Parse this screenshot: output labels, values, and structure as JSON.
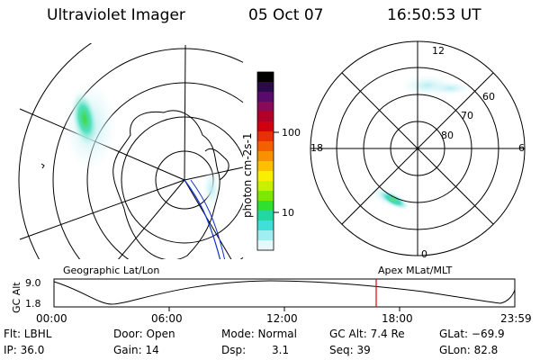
{
  "header": {
    "instrument": "Ultraviolet Imager",
    "date": "05 Oct 07",
    "time": "16:50:53 UT"
  },
  "colorbar": {
    "label": "photon cm-2s-1",
    "ticks": [
      "100",
      "10"
    ],
    "colors": [
      "#000000",
      "#2a0a4a",
      "#5a0a6a",
      "#8a0a5a",
      "#b0002a",
      "#d00010",
      "#e83000",
      "#f46000",
      "#f89000",
      "#fcc000",
      "#f8f000",
      "#c8f000",
      "#80e800",
      "#30e030",
      "#20d8a0",
      "#40e0d8",
      "#a0eef0",
      "#e8f8fa"
    ]
  },
  "left_map": {
    "label": "Geographic Lat/Lon"
  },
  "right_map": {
    "label": "Apex MLat/MLT",
    "lat_labels": [
      "60",
      "70",
      "80"
    ],
    "mlt_labels": [
      "12",
      "18",
      "6",
      "0"
    ]
  },
  "altitude_plot": {
    "ylabel": "GC Alt",
    "y_ticks": [
      "9.0",
      "1.8"
    ],
    "x_ticks": [
      "00:00",
      "06:00",
      "12:00",
      "18:00",
      "23:59"
    ],
    "current_marker_color": "#e00000"
  },
  "info": {
    "flt": "Flt: LBHL",
    "door": "Door: Open",
    "mode": "Mode: Normal",
    "gc_alt": "GC Alt: 7.4 Re",
    "glat": "GLat: −69.9",
    "ip": "IP: 36.0",
    "gain": "Gain: 14",
    "dsp_label": "Dsp:",
    "dsp_value": "3.1",
    "seq": "Seq: 39",
    "glon": "GLon:  82.8"
  }
}
